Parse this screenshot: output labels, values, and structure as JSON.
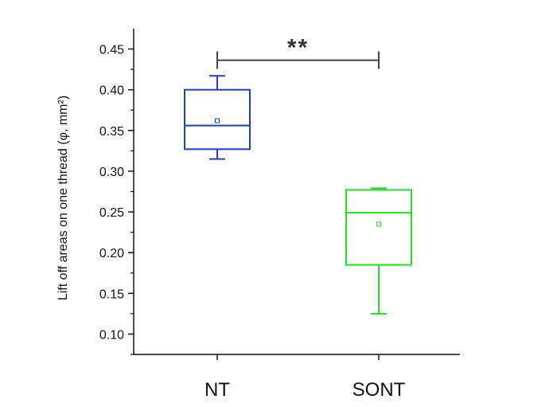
{
  "chart_data": {
    "type": "box",
    "ylabel": "Lift off areas on one thread (φ, mm²)",
    "ylim": [
      0.075,
      0.475
    ],
    "yticks": [
      "0.10",
      "0.15",
      "0.20",
      "0.25",
      "0.30",
      "0.35",
      "0.40",
      "0.45"
    ],
    "categories": [
      "NT",
      "SONT"
    ],
    "series": [
      {
        "category": "NT",
        "color": "#1f3fc9",
        "whisker_low": 0.315,
        "q1": 0.327,
        "median": 0.356,
        "q3": 0.4,
        "whisker_high": 0.417,
        "mean": 0.362
      },
      {
        "category": "SONT",
        "color": "#22dd22",
        "whisker_low": 0.125,
        "q1": 0.185,
        "median": 0.249,
        "q3": 0.277,
        "whisker_high": 0.279,
        "mean": 0.235
      }
    ],
    "significance": {
      "from": "NT",
      "to": "SONT",
      "y": 0.45,
      "label": "**",
      "color": "#444444"
    }
  }
}
